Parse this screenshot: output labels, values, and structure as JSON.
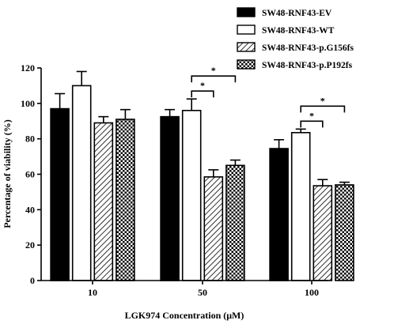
{
  "chart_data": {
    "type": "bar",
    "xlabel": "LGK974 Concentration (μM)",
    "ylabel": "Percentage of viability (%)",
    "ylim": [
      0,
      120
    ],
    "yticks": [
      "0",
      "20",
      "40",
      "60",
      "80",
      "100",
      "120"
    ],
    "categories": [
      "10",
      "50",
      "100"
    ],
    "legend_position": "top-right",
    "series": [
      {
        "name": "SW48-RNF43-EV",
        "fill": "solid-black",
        "values": [
          97,
          92.5,
          74.5
        ],
        "errors": [
          8.5,
          4,
          5
        ]
      },
      {
        "name": "SW48-RNF43-WT",
        "fill": "white",
        "values": [
          110,
          96,
          83.5
        ],
        "errors": [
          8,
          6.5,
          2
        ]
      },
      {
        "name": "SW48-RNF43-p.G156fs",
        "fill": "diagonal-hatch",
        "values": [
          89,
          58.5,
          53.5
        ],
        "errors": [
          3.5,
          4,
          3.5
        ]
      },
      {
        "name": "SW48-RNF43-p.P192fs",
        "fill": "checkerboard",
        "values": [
          91,
          65,
          54
        ],
        "errors": [
          5.5,
          3,
          1.5
        ]
      }
    ],
    "significance": [
      {
        "group": "50",
        "from_series": 1,
        "to_series": 2,
        "label": "*"
      },
      {
        "group": "50",
        "from_series": 1,
        "to_series": 3,
        "label": "*"
      },
      {
        "group": "100",
        "from_series": 1,
        "to_series": 2,
        "label": "*"
      },
      {
        "group": "100",
        "from_series": 1,
        "to_series": 3,
        "label": "*"
      }
    ]
  }
}
